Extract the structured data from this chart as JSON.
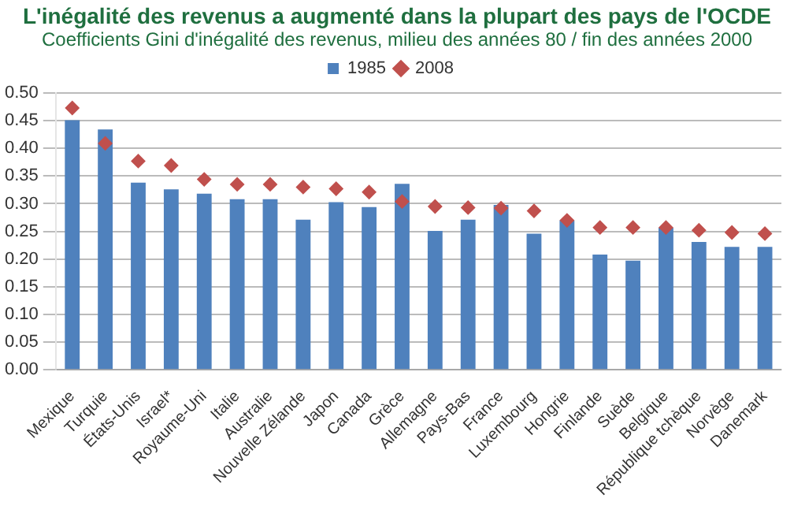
{
  "chart_data": {
    "type": "bar",
    "title": "L'inégalité des revenus a augmenté dans la plupart des pays de l'OCDE",
    "subtitle": "Coefficients Gini d'inégalité des revenus, milieu des années 80 / fin des années 2000",
    "categories": [
      "Mexique",
      "Turquie",
      "États-Unis",
      "Israel*",
      "Royaume-Uni",
      "Italie",
      "Australie",
      "Nouvelle Zélande",
      "Japon",
      "Canada",
      "Grèce",
      "Allemagne",
      "Pays-Bas",
      "France",
      "Luxembourg",
      "Hongrie",
      "Finlande",
      "Suède",
      "Belgique",
      "République tchèque",
      "Norvège",
      "Danemark"
    ],
    "series": [
      {
        "name": "1985",
        "color": "#4f81bd",
        "values": [
          0.451,
          0.434,
          0.338,
          0.326,
          0.318,
          0.308,
          0.308,
          0.271,
          0.303,
          0.294,
          0.336,
          0.251,
          0.271,
          0.298,
          0.246,
          0.27,
          0.208,
          0.197,
          0.257,
          0.231,
          0.222,
          0.222
        ]
      },
      {
        "name": "2008",
        "type": "scatter",
        "marker": "diamond",
        "color": "#c0504d",
        "values": [
          0.473,
          0.409,
          0.377,
          0.369,
          0.344,
          0.335,
          0.335,
          0.33,
          0.327,
          0.321,
          0.304,
          0.295,
          0.293,
          0.292,
          0.287,
          0.27,
          0.257,
          0.257,
          0.257,
          0.252,
          0.248,
          0.246
        ]
      }
    ],
    "ylim": [
      0,
      0.5
    ],
    "yticks": [
      {
        "value": 0,
        "label": "0.00"
      },
      {
        "value": 0.05,
        "label": "0.05"
      },
      {
        "value": 0.1,
        "label": "0.10"
      },
      {
        "value": 0.15,
        "label": "0.15"
      },
      {
        "value": 0.2,
        "label": "0.20"
      },
      {
        "value": 0.25,
        "label": "0.25"
      },
      {
        "value": 0.3,
        "label": "0.30"
      },
      {
        "value": 0.35,
        "label": "0.35"
      },
      {
        "value": 0.4,
        "label": "0.40"
      },
      {
        "value": 0.45,
        "label": "0.45"
      },
      {
        "value": 0.5,
        "label": "0.50"
      }
    ],
    "grid": "y",
    "legend": "top"
  }
}
